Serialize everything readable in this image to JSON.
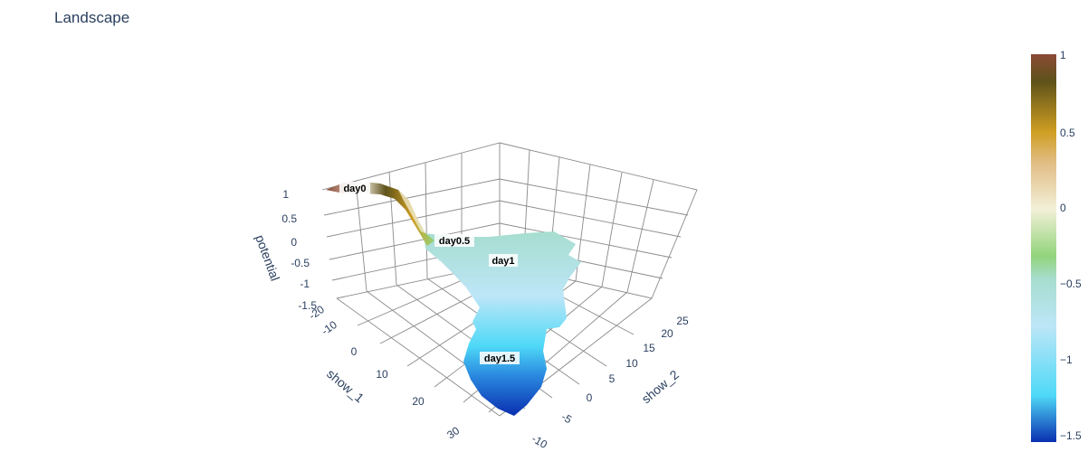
{
  "chart_data": {
    "type": "surface",
    "title": "Landscape",
    "axes": {
      "x": {
        "label": "show_1",
        "ticks": [
          "-20",
          "-10",
          "0",
          "10",
          "20",
          "30"
        ]
      },
      "y": {
        "label": "show_2",
        "ticks": [
          "-10",
          "-5",
          "0",
          "5",
          "10",
          "15",
          "20",
          "25"
        ]
      },
      "z": {
        "label": "potential",
        "ticks": [
          "-1.5",
          "-1",
          "-0.5",
          "0",
          "0.5",
          "1"
        ]
      }
    },
    "annotations": [
      {
        "text": "day0",
        "x": -20,
        "y": -7,
        "z": 1.0
      },
      {
        "text": "day0.5",
        "x": -5,
        "y": 8,
        "z": -0.1
      },
      {
        "text": "day1",
        "x": 0,
        "y": 14,
        "z": -0.6
      },
      {
        "text": "day1.5",
        "x": 22,
        "y": 12,
        "z": -1.2
      }
    ],
    "colorbar": {
      "range": [
        -1.5,
        1
      ],
      "ticks": [
        "1",
        "0.5",
        "0",
        "−0.5",
        "−1",
        "−1.5"
      ],
      "colors": [
        "#0a2fb0",
        "#4fd9f7",
        "#bde6f7",
        "#a6ddcf",
        "#92d47c",
        "#f3f0d8",
        "#e1bd85",
        "#cf9e22",
        "#5e521a",
        "#8b4a35"
      ]
    }
  }
}
